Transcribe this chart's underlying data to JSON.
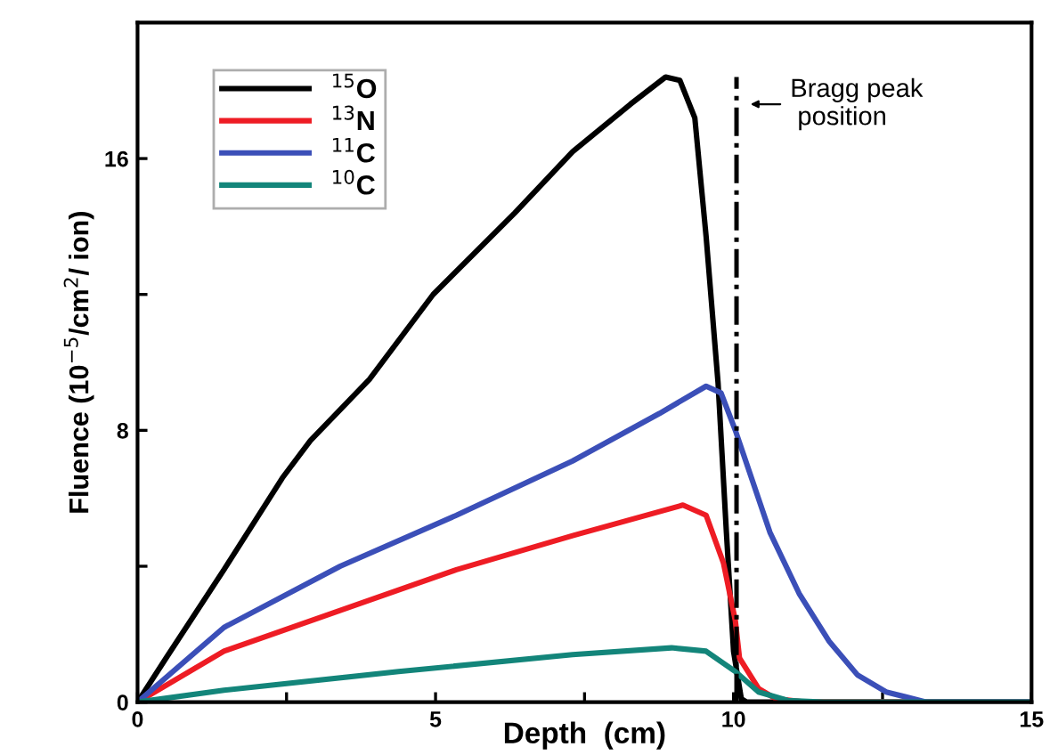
{
  "chart_data": {
    "type": "line",
    "xlabel": "Depth  (cm)",
    "ylabel": "Fluence (10$^{−5}$/cm$^{2}$/ ion)",
    "xlim": [
      0,
      15
    ],
    "xticks": [
      0,
      {
        "value": 2.5,
        "label": null
      },
      5,
      {
        "value": 7.5,
        "label": null
      },
      10,
      {
        "value": 12.5,
        "label": null
      },
      15
    ],
    "ylim": [
      0,
      20
    ],
    "yticks": [
      0,
      {
        "value": 4,
        "label": null
      },
      8,
      {
        "value": 12,
        "label": null
      },
      16
    ],
    "grid": false,
    "legend": "top left",
    "marker": "none",
    "line_style": "solid",
    "series": [
      {
        "name": "$^{15}$O",
        "color": "#000000",
        "x": [
          0,
          0.48,
          1.45,
          2.43,
          2.9,
          3.89,
          4.96,
          6.33,
          7.3,
          8.27,
          8.86,
          9.1,
          9.35,
          9.54,
          9.74,
          9.88,
          10.0,
          10.13,
          10.22,
          15
        ],
        "values": [
          0,
          1.3,
          3.9,
          6.6,
          7.7,
          9.5,
          12.0,
          14.4,
          16.2,
          17.6,
          18.4,
          18.3,
          17.2,
          13.7,
          9.4,
          5.0,
          1.5,
          0.1,
          0,
          0
        ]
      },
      {
        "name": "$^{13}$N",
        "color": "#ee1c24",
        "x": [
          0,
          1.45,
          3.4,
          5.35,
          7.3,
          9.15,
          9.54,
          9.83,
          10.03,
          10.1,
          10.42,
          10.71,
          11.2,
          15
        ],
        "values": [
          0,
          1.5,
          2.7,
          3.9,
          4.9,
          5.8,
          5.5,
          4.1,
          2.4,
          1.3,
          0.4,
          0.1,
          0,
          0
        ]
      },
      {
        "name": "$^{11}$C",
        "color": "#3b4fb8",
        "x": [
          0,
          1.45,
          3.4,
          5.35,
          7.3,
          8.76,
          9.54,
          9.79,
          10.03,
          10.61,
          11.1,
          11.6,
          12.08,
          12.56,
          13.24,
          15
        ],
        "values": [
          0,
          2.2,
          4.0,
          5.5,
          7.1,
          8.5,
          9.3,
          9.1,
          8.0,
          5.0,
          3.2,
          1.8,
          0.8,
          0.3,
          0,
          0
        ]
      },
      {
        "name": "$^{10}$C",
        "color": "#13857a",
        "x": [
          0,
          1.45,
          4.38,
          7.3,
          8.96,
          9.54,
          10.03,
          10.42,
          10.91,
          11.5,
          15
        ],
        "values": [
          0,
          0.35,
          0.9,
          1.4,
          1.6,
          1.5,
          0.9,
          0.3,
          0.05,
          0,
          0
        ]
      }
    ],
    "ref_lines": [
      {
        "axis": "x",
        "value": 10.05,
        "label": "Bragg peak\n position",
        "color": "#000000",
        "line_style": "dashdot"
      }
    ]
  }
}
